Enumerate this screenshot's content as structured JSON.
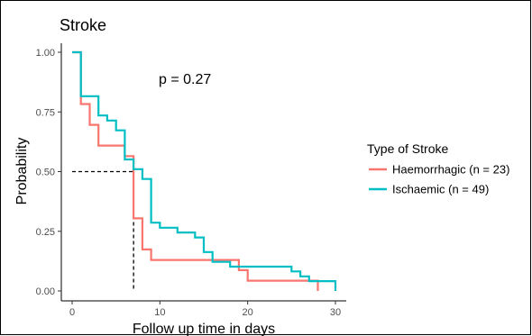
{
  "chart_data": {
    "type": "line",
    "subtype": "kaplan-meier step curve",
    "title": "Stroke",
    "xlabel": "Follow up time in days",
    "ylabel": "Probability",
    "xlim": [
      0,
      30
    ],
    "ylim": [
      0,
      1
    ],
    "x_ticks": [
      0,
      10,
      20,
      30
    ],
    "y_ticks": [
      0.0,
      0.25,
      0.5,
      0.75,
      1.0
    ],
    "y_tick_labels": [
      "0.00",
      "0.25",
      "0.50",
      "0.75",
      "1.00"
    ],
    "grid": false,
    "annotation": "p = 0.27",
    "legend": {
      "title": "Type of Stroke",
      "placement": "right"
    },
    "median_line": {
      "x": 7,
      "y": 0.5,
      "style": "dashed",
      "color": "#000000"
    },
    "series": [
      {
        "name": "Haemorrhagic (n = 23)",
        "color": "#F8766D",
        "points": [
          [
            0,
            1.0
          ],
          [
            1,
            0.783
          ],
          [
            2,
            0.696
          ],
          [
            3,
            0.609
          ],
          [
            6,
            0.565
          ],
          [
            7,
            0.304
          ],
          [
            8,
            0.174
          ],
          [
            9,
            0.13
          ],
          [
            16,
            0.13
          ],
          [
            19,
            0.087
          ],
          [
            20,
            0.043
          ],
          [
            28,
            0.0
          ]
        ]
      },
      {
        "name": "Ischaemic (n = 49)",
        "color": "#00BFC4",
        "points": [
          [
            0,
            1.0
          ],
          [
            1,
            0.816
          ],
          [
            3,
            0.735
          ],
          [
            4,
            0.714
          ],
          [
            5,
            0.673
          ],
          [
            6,
            0.551
          ],
          [
            7,
            0.51
          ],
          [
            8,
            0.469
          ],
          [
            9,
            0.286
          ],
          [
            10,
            0.265
          ],
          [
            12,
            0.245
          ],
          [
            14,
            0.224
          ],
          [
            15,
            0.163
          ],
          [
            16,
            0.122
          ],
          [
            18,
            0.102
          ],
          [
            21,
            0.102
          ],
          [
            25,
            0.082
          ],
          [
            26,
            0.061
          ],
          [
            27,
            0.041
          ],
          [
            30,
            0.0
          ]
        ]
      }
    ]
  }
}
